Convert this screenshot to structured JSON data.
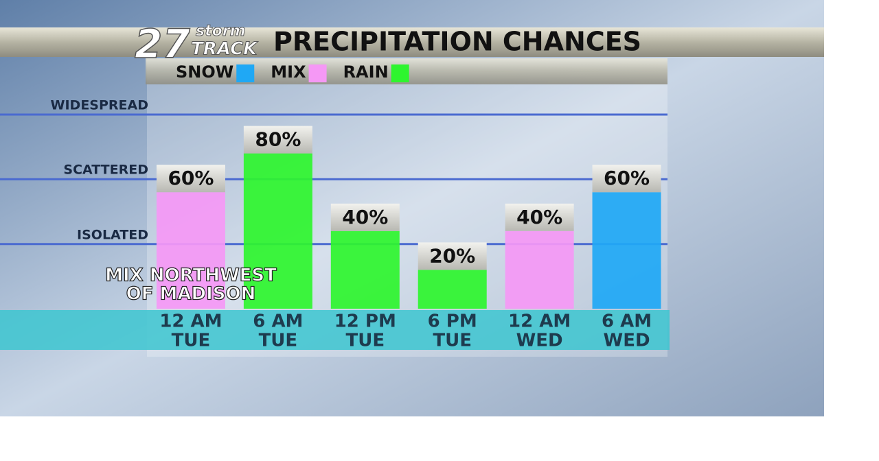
{
  "chart_data": {
    "type": "bar",
    "logo": {
      "number": "27",
      "top": "storm",
      "bottom": "TRACK"
    },
    "title": "PRECIPITATION CHANCES",
    "legend": [
      {
        "name": "SNOW",
        "color": "#1fa8f5"
      },
      {
        "name": "MIX",
        "color": "#f598f5"
      },
      {
        "name": "RAIN",
        "color": "#2ef52e"
      }
    ],
    "categories": [
      [
        "12 AM",
        "TUE"
      ],
      [
        "6 AM",
        "TUE"
      ],
      [
        "12 PM",
        "TUE"
      ],
      [
        "6 PM",
        "TUE"
      ],
      [
        "12 AM",
        "WED"
      ],
      [
        "6 AM",
        "WED"
      ]
    ],
    "values": [
      60,
      80,
      40,
      20,
      40,
      60
    ],
    "value_labels": [
      "60%",
      "80%",
      "40%",
      "20%",
      "40%",
      "60%"
    ],
    "colors": [
      "#f598f5",
      "#2ef52e",
      "#2ef52e",
      "#2ef52e",
      "#f598f5",
      "#1fa8f5"
    ],
    "ylim": [
      0,
      100
    ],
    "yticks": [
      {
        "value": 33.3,
        "label": "ISOLATED"
      },
      {
        "value": 66.7,
        "label": "SCATTERED"
      },
      {
        "value": 100,
        "label": "WIDESPREAD"
      }
    ],
    "grid": true,
    "annotation": [
      "MIX NORTHWEST",
      "OF MADISON"
    ]
  }
}
